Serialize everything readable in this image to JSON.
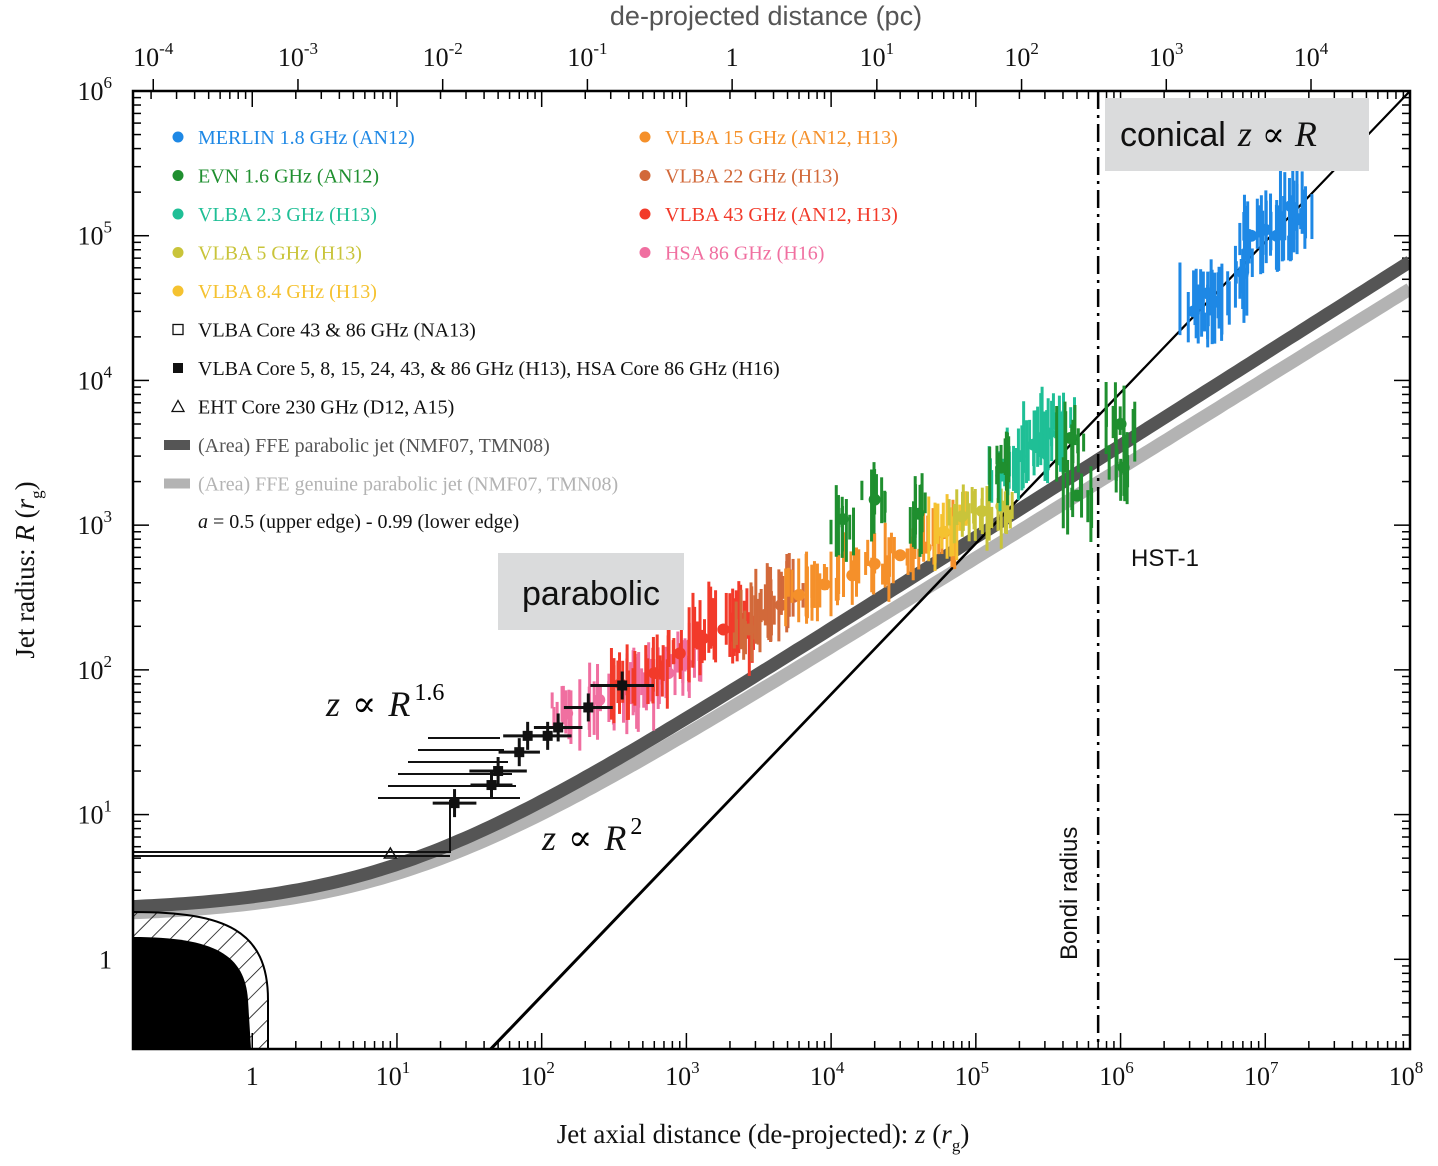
{
  "chart_data": {
    "type": "scatter",
    "title": "",
    "xlabel_prefix": "Jet axial distance (de-projected): ",
    "xlabel_var": "z",
    "xlabel_unit_open": " (",
    "xlabel_unit_r": "r",
    "xlabel_unit_sub": "g",
    "xlabel_unit_close": ")",
    "ylabel_prefix": "Jet radius: ",
    "ylabel_var": "R",
    "ylabel_unit_open": " (",
    "ylabel_unit_r": "r",
    "ylabel_unit_sub": "g",
    "ylabel_unit_close": ")",
    "top_xlabel": "de-projected distance (pc)",
    "x_scale": "log",
    "y_scale": "log",
    "xlim": [
      0.15,
      100000000
    ],
    "ylim": [
      0.24,
      1000000
    ],
    "x_ticks": [
      {
        "value": 1,
        "base": "1",
        "exp": ""
      },
      {
        "value": 10,
        "base": "10",
        "exp": "1"
      },
      {
        "value": 100,
        "base": "10",
        "exp": "2"
      },
      {
        "value": 1000,
        "base": "10",
        "exp": "3"
      },
      {
        "value": 10000,
        "base": "10",
        "exp": "4"
      },
      {
        "value": 100000,
        "base": "10",
        "exp": "5"
      },
      {
        "value": 1000000,
        "base": "10",
        "exp": "6"
      },
      {
        "value": 10000000,
        "base": "10",
        "exp": "7"
      },
      {
        "value": 100000000,
        "base": "10",
        "exp": "8"
      }
    ],
    "y_ticks": [
      {
        "value": 1,
        "base": "1",
        "exp": ""
      },
      {
        "value": 10,
        "base": "10",
        "exp": "1"
      },
      {
        "value": 100,
        "base": "10",
        "exp": "2"
      },
      {
        "value": 1000,
        "base": "10",
        "exp": "3"
      },
      {
        "value": 10000,
        "base": "10",
        "exp": "4"
      },
      {
        "value": 100000,
        "base": "10",
        "exp": "5"
      },
      {
        "value": 1000000,
        "base": "10",
        "exp": "6"
      }
    ],
    "top_ticks": [
      {
        "z": 0.207,
        "base": "10",
        "exp": "-4"
      },
      {
        "z": 2.07,
        "base": "10",
        "exp": "-3"
      },
      {
        "z": 20.7,
        "base": "10",
        "exp": "-2"
      },
      {
        "z": 207,
        "base": "10",
        "exp": "-1"
      },
      {
        "z": 2070,
        "base": "1",
        "exp": ""
      },
      {
        "z": 20700,
        "base": "10",
        "exp": "1"
      },
      {
        "z": 207000,
        "base": "10",
        "exp": "2"
      },
      {
        "z": 2070000,
        "base": "10",
        "exp": "3"
      },
      {
        "z": 20700000,
        "base": "10",
        "exp": "4"
      }
    ],
    "legend": [
      {
        "label": "MERLIN 1.8 GHz (AN12)",
        "marker": "dot",
        "color": "#1e88e5"
      },
      {
        "label": "EVN 1.6 GHz (AN12)",
        "marker": "dot",
        "color": "#1f8f2f"
      },
      {
        "label": "VLBA 2.3 GHz (H13)",
        "marker": "dot",
        "color": "#1fbf96"
      },
      {
        "label": "VLBA 5 GHz (H13)",
        "marker": "dot",
        "color": "#c9c43a"
      },
      {
        "label": "VLBA 8.4 GHz (H13)",
        "marker": "dot",
        "color": "#f5c230"
      },
      {
        "label": "VLBA Core 43 & 86 GHz (NA13)",
        "marker": "open-square",
        "color": "#111111"
      },
      {
        "label": "VLBA Core 5, 8, 15, 24, 43, & 86 GHz (H13), HSA Core 86 GHz (H16)",
        "marker": "filled-square",
        "color": "#111111"
      },
      {
        "label": "EHT Core 230 GHz (D12, A15)",
        "marker": "open-triangle",
        "color": "#111111"
      },
      {
        "label": "(Area) FFE parabolic jet (NMF07, TMN08)",
        "marker": "band",
        "color": "#555555"
      },
      {
        "label": "(Area) FFE genuine parabolic jet (NMF07, TMN08)",
        "marker": "band",
        "color": "#b3b3b3"
      },
      {
        "label": "VLBA 15 GHz (AN12, H13)",
        "marker": "dot",
        "color": "#f5902a"
      },
      {
        "label": "VLBA 22 GHz (H13)",
        "marker": "dot",
        "color": "#d2693a"
      },
      {
        "label": "VLBA 43 GHz (AN12, H13)",
        "marker": "dot",
        "color": "#f23a2a"
      },
      {
        "label": "HSA 86 GHz (H16)",
        "marker": "dot",
        "color": "#f06fa0"
      }
    ],
    "spin_note_var": "a",
    "spin_note": " = 0.5 (upper edge) - 0.99 (lower edge)",
    "series": [
      {
        "name": "HSA 86 GHz (H16)",
        "color": "#f06fa0",
        "z": [
          150,
          250,
          400,
          550,
          750,
          1000
        ],
        "r": [
          50,
          62,
          72,
          82,
          95,
          110
        ]
      },
      {
        "name": "VLBA 43 GHz (AN12, H13)",
        "color": "#f23a2a",
        "z": [
          350,
          600,
          900,
          1300,
          1800,
          2500,
          2600
        ],
        "r": [
          80,
          95,
          130,
          165,
          190,
          225,
          180
        ]
      },
      {
        "name": "VLBA 22 GHz (H13)",
        "color": "#d2693a",
        "z": [
          2700,
          3500,
          4500,
          5500
        ],
        "r": [
          190,
          240,
          280,
          320
        ]
      },
      {
        "name": "VLBA 15 GHz (AN12, H13)",
        "color": "#f5902a",
        "z": [
          6000,
          9000,
          14000,
          20000,
          30000,
          45000,
          60000
        ],
        "r": [
          330,
          390,
          450,
          540,
          620,
          700,
          880
        ]
      },
      {
        "name": "VLBA 8.4 GHz (H13)",
        "color": "#f5c230",
        "z": [
          60000,
          75000
        ],
        "r": [
          900,
          1100
        ]
      },
      {
        "name": "VLBA 5 GHz (H13)",
        "color": "#c9c43a",
        "z": [
          80000,
          110000,
          150000
        ],
        "r": [
          1150,
          1250,
          1350
        ]
      },
      {
        "name": "VLBA 2.3 GHz (H13)",
        "color": "#1fbf96",
        "z": [
          150000,
          200000,
          250000,
          320000,
          380000
        ],
        "r": [
          2200,
          3000,
          3600,
          4300,
          5000
        ]
      },
      {
        "name": "EVN 1.6 GHz (AN12)",
        "color": "#1f8f2f",
        "z": [
          12000,
          20000,
          40000,
          150000,
          450000,
          500000,
          1000000,
          1050000
        ],
        "r": [
          1100,
          1500,
          1200,
          2500,
          4000,
          1600,
          5000,
          2500
        ]
      },
      {
        "name": "MERLIN 1.8 GHz (AN12)",
        "color": "#1e88e5",
        "z": [
          3200000,
          4000000,
          4500000,
          7000000,
          8000000,
          10000000,
          12000000,
          15000000,
          17000000
        ],
        "r": [
          30000,
          40000,
          35000,
          55000,
          100000,
          110000,
          100000,
          160000,
          130000
        ]
      },
      {
        "name": "VLBA Core (H13, H16)",
        "color": "#111111",
        "z": [
          25,
          45,
          50,
          70,
          80,
          110,
          130,
          210,
          360
        ],
        "r": [
          12,
          16,
          20,
          27,
          35,
          35,
          40,
          55,
          78
        ]
      }
    ],
    "fits": [
      {
        "label_var_z": "z",
        "label_sym": "∝",
        "label_var_r": "R",
        "label_exp": "1.6",
        "relation": "z ∝ R^1.6",
        "type": "parabolic"
      },
      {
        "label_var_z": "z",
        "label_sym": "∝",
        "label_var_r": "R",
        "label_exp": "2",
        "relation": "z ∝ R^2",
        "type": "parabolic"
      },
      {
        "label_var_z": "z",
        "label_sym": "∝",
        "label_var_r": "R",
        "relation": "z ∝ R",
        "type": "conical"
      }
    ],
    "annotations": {
      "parabolic_box": "parabolic",
      "conical_box_word": "conical",
      "bondi_label": "Bondi radius",
      "hst_label": "HST-1"
    },
    "bondi_radius_z": 700000
  }
}
